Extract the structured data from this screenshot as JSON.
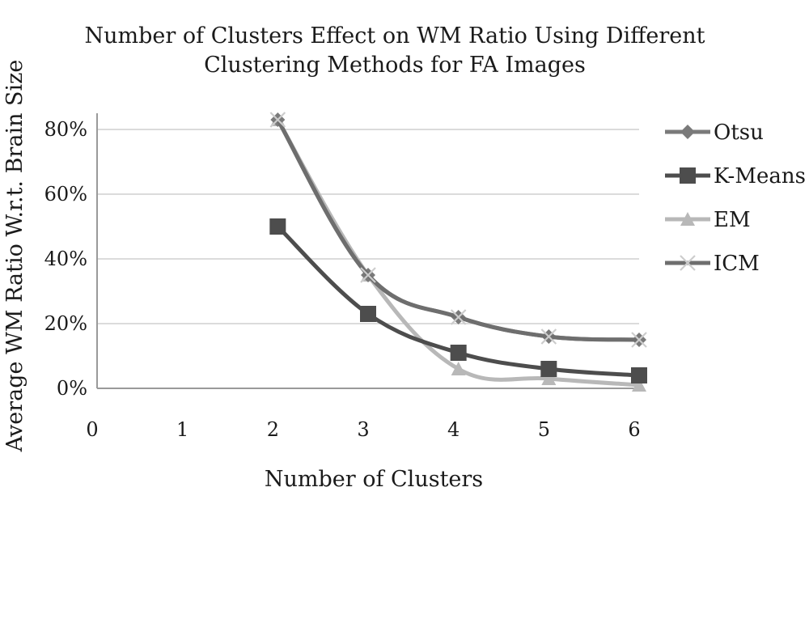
{
  "chart_data": {
    "type": "line",
    "title_lines": [
      "Number of Clusters Effect on WM Ratio Using Different",
      "Clustering Methods for FA Images"
    ],
    "xlabel": "Number of Clusters",
    "ylabel": "Average WM Ratio W.r.t. Brain Size",
    "x_ticks": [
      "0",
      "1",
      "2",
      "3",
      "4",
      "5",
      "6"
    ],
    "y_ticks": [
      "0%",
      "20%",
      "40%",
      "60%",
      "80%"
    ],
    "x": [
      2,
      3,
      4,
      5,
      6
    ],
    "xlim": [
      0,
      6
    ],
    "ylim": [
      0,
      0.85
    ],
    "grid": true,
    "legend_position": "right",
    "series": [
      {
        "name": "Otsu",
        "marker": "diamond",
        "color": "#7a7a7a",
        "values": [
          0.83,
          0.35,
          0.22,
          0.16,
          0.15
        ]
      },
      {
        "name": "K-Means",
        "marker": "square",
        "color": "#4d4d4d",
        "values": [
          0.5,
          0.23,
          0.11,
          0.06,
          0.04
        ]
      },
      {
        "name": "EM",
        "marker": "triangle",
        "color": "#b8b8b8",
        "values": [
          0.83,
          0.35,
          0.06,
          0.03,
          0.01
        ]
      },
      {
        "name": "ICM",
        "marker": "x",
        "color": "#6e6e6e",
        "values": [
          0.83,
          0.35,
          0.22,
          0.16,
          0.15
        ]
      }
    ]
  }
}
